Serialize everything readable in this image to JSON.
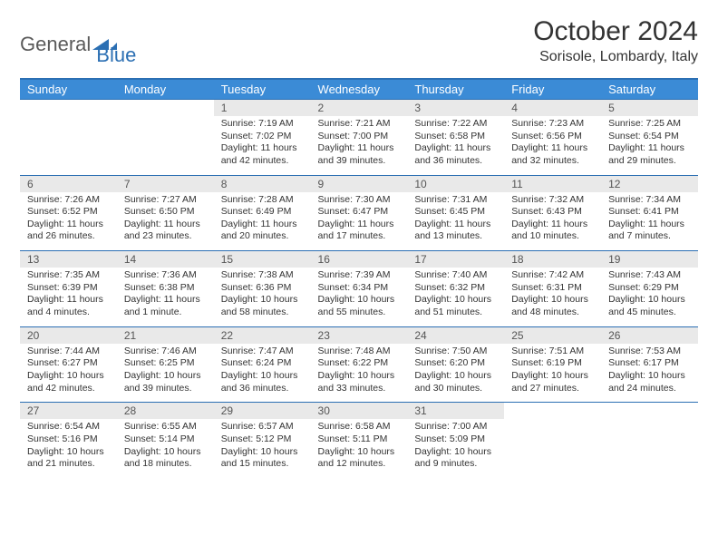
{
  "brand": {
    "general": "General",
    "blue": "Blue"
  },
  "title": "October 2024",
  "subtitle": "Sorisole, Lombardy, Italy",
  "colors": {
    "header_bg": "#3b8bd6",
    "header_fg": "#ffffff",
    "rule": "#2b6fb3",
    "daynum_bg": "#e9e9e9",
    "text": "#333333",
    "logo_gray": "#5a5a5a",
    "logo_blue": "#2b6fb3"
  },
  "weekdays": [
    "Sunday",
    "Monday",
    "Tuesday",
    "Wednesday",
    "Thursday",
    "Friday",
    "Saturday"
  ],
  "weeks": [
    [
      null,
      null,
      {
        "n": "1",
        "sr": "Sunrise: 7:19 AM",
        "ss": "Sunset: 7:02 PM",
        "d1": "Daylight: 11 hours",
        "d2": "and 42 minutes."
      },
      {
        "n": "2",
        "sr": "Sunrise: 7:21 AM",
        "ss": "Sunset: 7:00 PM",
        "d1": "Daylight: 11 hours",
        "d2": "and 39 minutes."
      },
      {
        "n": "3",
        "sr": "Sunrise: 7:22 AM",
        "ss": "Sunset: 6:58 PM",
        "d1": "Daylight: 11 hours",
        "d2": "and 36 minutes."
      },
      {
        "n": "4",
        "sr": "Sunrise: 7:23 AM",
        "ss": "Sunset: 6:56 PM",
        "d1": "Daylight: 11 hours",
        "d2": "and 32 minutes."
      },
      {
        "n": "5",
        "sr": "Sunrise: 7:25 AM",
        "ss": "Sunset: 6:54 PM",
        "d1": "Daylight: 11 hours",
        "d2": "and 29 minutes."
      }
    ],
    [
      {
        "n": "6",
        "sr": "Sunrise: 7:26 AM",
        "ss": "Sunset: 6:52 PM",
        "d1": "Daylight: 11 hours",
        "d2": "and 26 minutes."
      },
      {
        "n": "7",
        "sr": "Sunrise: 7:27 AM",
        "ss": "Sunset: 6:50 PM",
        "d1": "Daylight: 11 hours",
        "d2": "and 23 minutes."
      },
      {
        "n": "8",
        "sr": "Sunrise: 7:28 AM",
        "ss": "Sunset: 6:49 PM",
        "d1": "Daylight: 11 hours",
        "d2": "and 20 minutes."
      },
      {
        "n": "9",
        "sr": "Sunrise: 7:30 AM",
        "ss": "Sunset: 6:47 PM",
        "d1": "Daylight: 11 hours",
        "d2": "and 17 minutes."
      },
      {
        "n": "10",
        "sr": "Sunrise: 7:31 AM",
        "ss": "Sunset: 6:45 PM",
        "d1": "Daylight: 11 hours",
        "d2": "and 13 minutes."
      },
      {
        "n": "11",
        "sr": "Sunrise: 7:32 AM",
        "ss": "Sunset: 6:43 PM",
        "d1": "Daylight: 11 hours",
        "d2": "and 10 minutes."
      },
      {
        "n": "12",
        "sr": "Sunrise: 7:34 AM",
        "ss": "Sunset: 6:41 PM",
        "d1": "Daylight: 11 hours",
        "d2": "and 7 minutes."
      }
    ],
    [
      {
        "n": "13",
        "sr": "Sunrise: 7:35 AM",
        "ss": "Sunset: 6:39 PM",
        "d1": "Daylight: 11 hours",
        "d2": "and 4 minutes."
      },
      {
        "n": "14",
        "sr": "Sunrise: 7:36 AM",
        "ss": "Sunset: 6:38 PM",
        "d1": "Daylight: 11 hours",
        "d2": "and 1 minute."
      },
      {
        "n": "15",
        "sr": "Sunrise: 7:38 AM",
        "ss": "Sunset: 6:36 PM",
        "d1": "Daylight: 10 hours",
        "d2": "and 58 minutes."
      },
      {
        "n": "16",
        "sr": "Sunrise: 7:39 AM",
        "ss": "Sunset: 6:34 PM",
        "d1": "Daylight: 10 hours",
        "d2": "and 55 minutes."
      },
      {
        "n": "17",
        "sr": "Sunrise: 7:40 AM",
        "ss": "Sunset: 6:32 PM",
        "d1": "Daylight: 10 hours",
        "d2": "and 51 minutes."
      },
      {
        "n": "18",
        "sr": "Sunrise: 7:42 AM",
        "ss": "Sunset: 6:31 PM",
        "d1": "Daylight: 10 hours",
        "d2": "and 48 minutes."
      },
      {
        "n": "19",
        "sr": "Sunrise: 7:43 AM",
        "ss": "Sunset: 6:29 PM",
        "d1": "Daylight: 10 hours",
        "d2": "and 45 minutes."
      }
    ],
    [
      {
        "n": "20",
        "sr": "Sunrise: 7:44 AM",
        "ss": "Sunset: 6:27 PM",
        "d1": "Daylight: 10 hours",
        "d2": "and 42 minutes."
      },
      {
        "n": "21",
        "sr": "Sunrise: 7:46 AM",
        "ss": "Sunset: 6:25 PM",
        "d1": "Daylight: 10 hours",
        "d2": "and 39 minutes."
      },
      {
        "n": "22",
        "sr": "Sunrise: 7:47 AM",
        "ss": "Sunset: 6:24 PM",
        "d1": "Daylight: 10 hours",
        "d2": "and 36 minutes."
      },
      {
        "n": "23",
        "sr": "Sunrise: 7:48 AM",
        "ss": "Sunset: 6:22 PM",
        "d1": "Daylight: 10 hours",
        "d2": "and 33 minutes."
      },
      {
        "n": "24",
        "sr": "Sunrise: 7:50 AM",
        "ss": "Sunset: 6:20 PM",
        "d1": "Daylight: 10 hours",
        "d2": "and 30 minutes."
      },
      {
        "n": "25",
        "sr": "Sunrise: 7:51 AM",
        "ss": "Sunset: 6:19 PM",
        "d1": "Daylight: 10 hours",
        "d2": "and 27 minutes."
      },
      {
        "n": "26",
        "sr": "Sunrise: 7:53 AM",
        "ss": "Sunset: 6:17 PM",
        "d1": "Daylight: 10 hours",
        "d2": "and 24 minutes."
      }
    ],
    [
      {
        "n": "27",
        "sr": "Sunrise: 6:54 AM",
        "ss": "Sunset: 5:16 PM",
        "d1": "Daylight: 10 hours",
        "d2": "and 21 minutes."
      },
      {
        "n": "28",
        "sr": "Sunrise: 6:55 AM",
        "ss": "Sunset: 5:14 PM",
        "d1": "Daylight: 10 hours",
        "d2": "and 18 minutes."
      },
      {
        "n": "29",
        "sr": "Sunrise: 6:57 AM",
        "ss": "Sunset: 5:12 PM",
        "d1": "Daylight: 10 hours",
        "d2": "and 15 minutes."
      },
      {
        "n": "30",
        "sr": "Sunrise: 6:58 AM",
        "ss": "Sunset: 5:11 PM",
        "d1": "Daylight: 10 hours",
        "d2": "and 12 minutes."
      },
      {
        "n": "31",
        "sr": "Sunrise: 7:00 AM",
        "ss": "Sunset: 5:09 PM",
        "d1": "Daylight: 10 hours",
        "d2": "and 9 minutes."
      },
      null,
      null
    ]
  ]
}
